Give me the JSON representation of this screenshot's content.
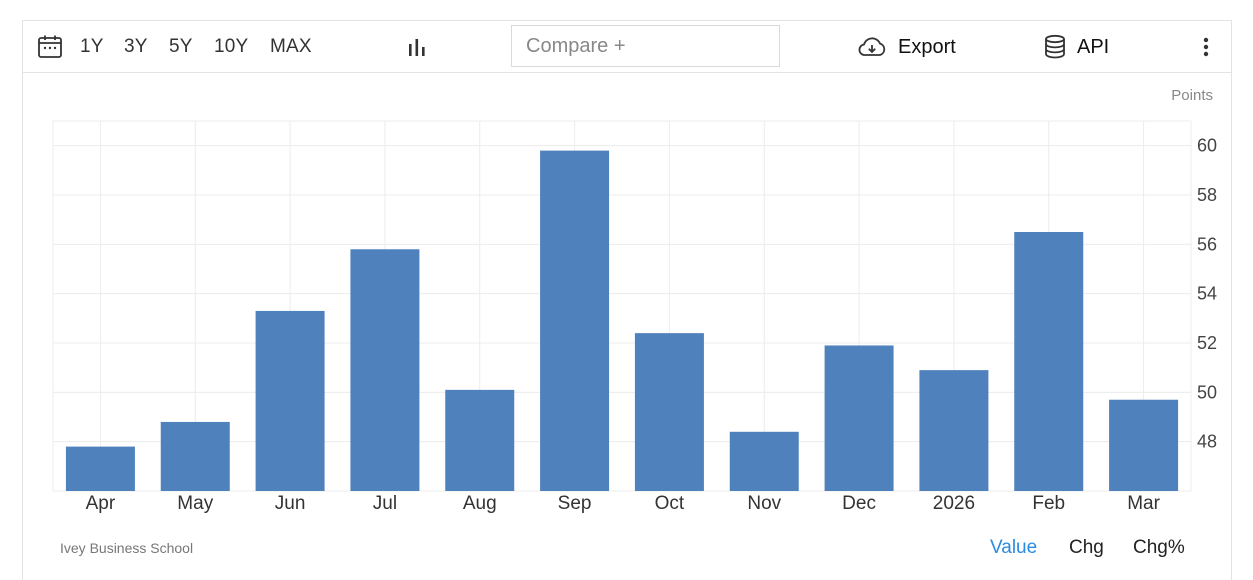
{
  "toolbar": {
    "ranges": [
      "1Y",
      "3Y",
      "5Y",
      "10Y",
      "MAX"
    ],
    "compare_placeholder": "Compare +",
    "export_label": "Export",
    "api_label": "API",
    "icons": [
      "calendar-icon",
      "bar-chart-icon",
      "cloud-download-icon",
      "database-icon",
      "more-vertical-icon"
    ]
  },
  "unit_label": "Points",
  "source": "Ivey Business School",
  "view_tabs": {
    "value": "Value",
    "chg": "Chg",
    "chg_pct": "Chg%",
    "active": "Value"
  },
  "colors": {
    "bar": "#4f81bd",
    "active_tab": "#2a8ce0",
    "grid": "#ececec"
  },
  "chart_data": {
    "type": "bar",
    "categories": [
      "Apr",
      "May",
      "Jun",
      "Jul",
      "Aug",
      "Sep",
      "Oct",
      "Nov",
      "Dec",
      "2026",
      "Feb",
      "Mar"
    ],
    "values": [
      47.8,
      48.8,
      53.3,
      55.8,
      50.1,
      59.8,
      52.4,
      48.4,
      51.9,
      50.9,
      56.5,
      49.7
    ],
    "ylim": [
      46,
      61
    ],
    "yticks": [
      48,
      50,
      52,
      54,
      56,
      58,
      60
    ],
    "y_axis_position": "right",
    "grid": true
  }
}
